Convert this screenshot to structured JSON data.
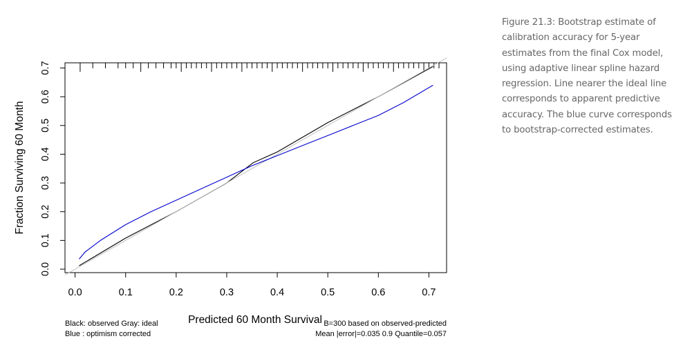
{
  "figure": {
    "caption": "Figure 21.3: Bootstrap estimate of calibration accuracy for 5-year estimates from the final Cox model, using adaptive linear spline hazard regression. Line nearer the ideal line corresponds to apparent predictive accuracy. The blue curve corresponds to bootstrap-corrected estimates."
  },
  "legend": {
    "line1": "Black: observed  Gray: ideal",
    "line2": "Blue : optimism corrected"
  },
  "stats": {
    "line1": "B=300 based on observed-predicted",
    "line2": "Mean |error|=0.035  0.9 Quantile=0.057"
  },
  "chart_data": {
    "type": "line",
    "xlabel": "Predicted  60 Month Survival",
    "ylabel": "Fraction Surviving 60 Month",
    "xlim": [
      -0.02,
      0.735
    ],
    "ylim": [
      -0.012,
      0.718
    ],
    "xticks": [
      "0.0",
      "0.1",
      "0.2",
      "0.3",
      "0.4",
      "0.5",
      "0.6",
      "0.7"
    ],
    "yticks": [
      "0.0",
      "0.1",
      "0.2",
      "0.3",
      "0.4",
      "0.5",
      "0.6",
      "0.7"
    ],
    "grid": false,
    "series": [
      {
        "name": "observed",
        "color": "#000000",
        "x": [
          0.008,
          0.1,
          0.2,
          0.3,
          0.352,
          0.4,
          0.5,
          0.6,
          0.708
        ],
        "y": [
          0.012,
          0.108,
          0.2,
          0.3,
          0.37,
          0.408,
          0.51,
          0.6,
          0.705
        ]
      },
      {
        "name": "ideal",
        "color": "#bebebe",
        "x": [
          -0.02,
          0.735
        ],
        "y": [
          -0.02,
          0.735
        ]
      },
      {
        "name": "optimism corrected",
        "color": "#0000cc",
        "x": [
          0.008,
          0.02,
          0.05,
          0.1,
          0.15,
          0.2,
          0.25,
          0.3,
          0.35,
          0.4,
          0.45,
          0.5,
          0.55,
          0.6,
          0.65,
          0.708
        ],
        "y": [
          0.035,
          0.06,
          0.1,
          0.155,
          0.2,
          0.24,
          0.28,
          0.32,
          0.36,
          0.395,
          0.43,
          0.465,
          0.5,
          0.535,
          0.58,
          0.64
        ]
      }
    ],
    "rug_x": [
      0.01,
      0.035,
      0.06,
      0.085,
      0.1,
      0.115,
      0.13,
      0.145,
      0.16,
      0.175,
      0.19,
      0.2,
      0.21,
      0.22,
      0.23,
      0.24,
      0.25,
      0.26,
      0.27,
      0.28,
      0.29,
      0.3,
      0.31,
      0.32,
      0.33,
      0.34,
      0.35,
      0.36,
      0.37,
      0.38,
      0.39,
      0.4,
      0.41,
      0.42,
      0.43,
      0.44,
      0.45,
      0.46,
      0.47,
      0.48,
      0.49,
      0.5,
      0.51,
      0.52,
      0.53,
      0.54,
      0.55,
      0.56,
      0.57,
      0.58,
      0.59,
      0.6,
      0.61,
      0.62,
      0.63,
      0.64,
      0.65,
      0.66,
      0.67,
      0.68,
      0.69,
      0.7,
      0.71,
      0.72
    ]
  }
}
